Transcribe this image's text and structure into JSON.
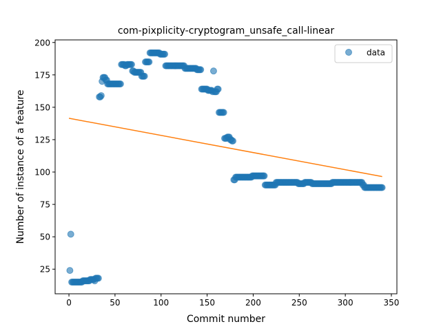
{
  "chart_data": {
    "type": "scatter",
    "title": "com-pixplicity-cryptogram_unsafe_call-linear",
    "xlabel": "Commit number",
    "ylabel": "Number of instance of a feature",
    "xlim": [
      -15,
      356
    ],
    "ylim": [
      6,
      202
    ],
    "xticks": [
      0,
      50,
      100,
      150,
      200,
      250,
      300,
      350
    ],
    "yticks": [
      25,
      50,
      75,
      100,
      125,
      150,
      175,
      200
    ],
    "legend": {
      "placement": "top-right",
      "entries": [
        "data"
      ]
    },
    "colors": {
      "data": "#1f77b4",
      "fit": "#ff7f0e"
    },
    "series": [
      {
        "name": "data",
        "kind": "scatter",
        "segments": [
          [
            1,
            1,
            24
          ],
          [
            2,
            2,
            52
          ],
          [
            3,
            14,
            15
          ],
          [
            15,
            22,
            16
          ],
          [
            23,
            27,
            17
          ],
          [
            28,
            28,
            16
          ],
          [
            29,
            32,
            18
          ],
          [
            33,
            34,
            158
          ],
          [
            35,
            35,
            159
          ],
          [
            36,
            36,
            170
          ],
          [
            37,
            39,
            173
          ],
          [
            40,
            41,
            171
          ],
          [
            42,
            46,
            168
          ],
          [
            47,
            56,
            168
          ],
          [
            57,
            60,
            183
          ],
          [
            61,
            62,
            182
          ],
          [
            63,
            68,
            183
          ],
          [
            69,
            70,
            178
          ],
          [
            71,
            78,
            177
          ],
          [
            79,
            82,
            174
          ],
          [
            83,
            87,
            185
          ],
          [
            88,
            98,
            192
          ],
          [
            99,
            104,
            191
          ],
          [
            105,
            125,
            182
          ],
          [
            126,
            138,
            180
          ],
          [
            139,
            143,
            179
          ],
          [
            144,
            150,
            164
          ],
          [
            151,
            155,
            163
          ],
          [
            156,
            156,
            162
          ],
          [
            157,
            157,
            178
          ],
          [
            158,
            160,
            162
          ],
          [
            161,
            162,
            164
          ],
          [
            163,
            168,
            146
          ],
          [
            169,
            171,
            126
          ],
          [
            172,
            174,
            127
          ],
          [
            175,
            176,
            125
          ],
          [
            177,
            178,
            124
          ],
          [
            179,
            180,
            94
          ],
          [
            181,
            198,
            96
          ],
          [
            199,
            212,
            97
          ],
          [
            213,
            224,
            90
          ],
          [
            225,
            248,
            92
          ],
          [
            249,
            255,
            91
          ],
          [
            256,
            263,
            92
          ],
          [
            264,
            285,
            91
          ],
          [
            286,
            318,
            92
          ],
          [
            319,
            320,
            90
          ],
          [
            321,
            340,
            88
          ]
        ]
      },
      {
        "name": "",
        "kind": "line",
        "x": [
          0,
          340
        ],
        "y": [
          141.5,
          96.5
        ]
      }
    ]
  }
}
